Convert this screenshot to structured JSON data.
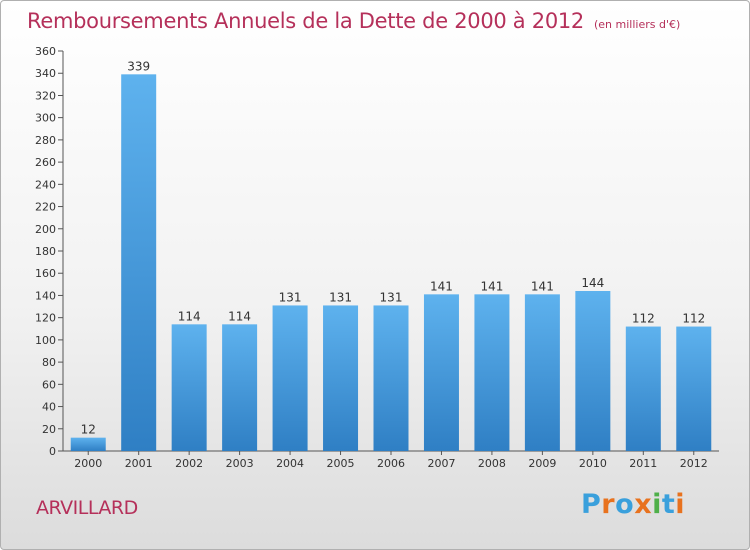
{
  "title": "Remboursements Annuels de la Dette de 2000 à 2012",
  "title_unit": "(en milliers d'€)",
  "city": "ARVILLARD",
  "logo": {
    "letters": [
      "P",
      "r",
      "o",
      "x",
      "i",
      "t",
      "i"
    ],
    "colors": [
      "#3aa0dc",
      "#e8721e",
      "#3aa0dc",
      "#e8721e",
      "#4fb04a",
      "#3aa0dc",
      "#e8721e"
    ]
  },
  "colors": {
    "bar": "#3d8fd6",
    "title": "#b5305a"
  },
  "chart_data": {
    "type": "bar",
    "categories": [
      "2000",
      "2001",
      "2002",
      "2003",
      "2004",
      "2005",
      "2006",
      "2007",
      "2008",
      "2009",
      "2010",
      "2011",
      "2012"
    ],
    "values": [
      12,
      339,
      114,
      114,
      131,
      131,
      131,
      141,
      141,
      141,
      144,
      112,
      112
    ],
    "ylim": [
      0,
      360
    ],
    "yticks": [
      0,
      20,
      40,
      60,
      80,
      100,
      120,
      140,
      160,
      180,
      200,
      220,
      240,
      260,
      280,
      300,
      320,
      340,
      360
    ],
    "grid": false
  }
}
